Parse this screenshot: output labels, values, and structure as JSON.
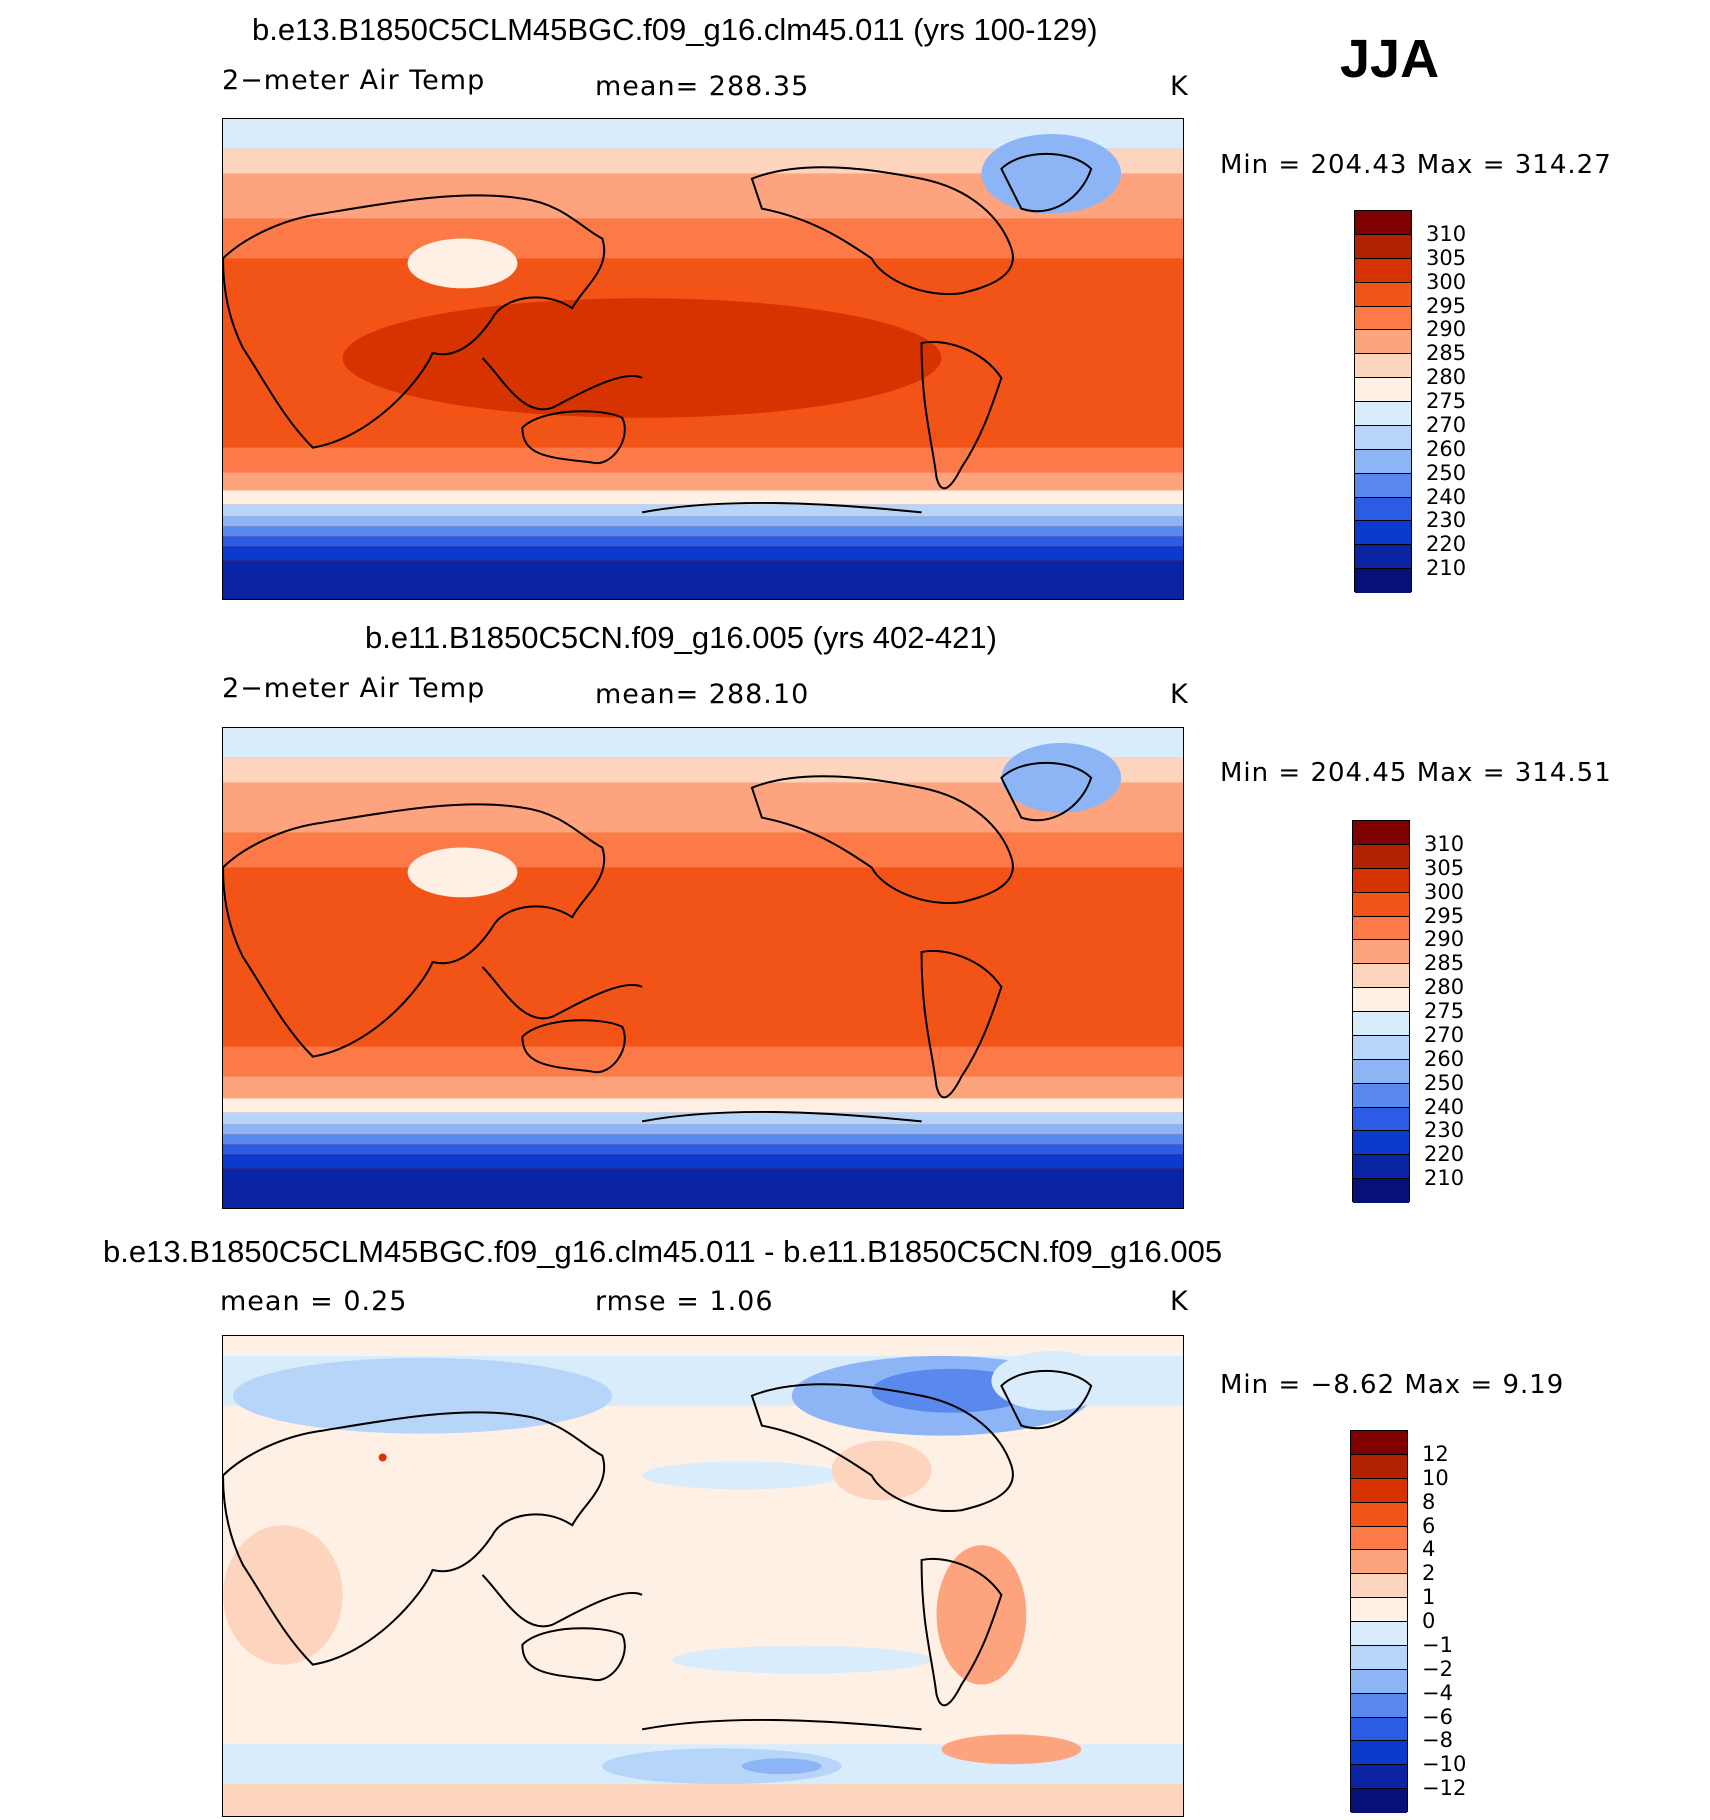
{
  "season": "JJA",
  "panels": [
    {
      "title": "b.e13.B1850C5CLM45BGC.f09_g16.clm45.011 (yrs 100-129)",
      "variable": "2−meter Air Temp",
      "stat1": "mean=  288.35",
      "stat2": "",
      "units": "K",
      "minmax": "Min  =  204.43  Max  =  314.27",
      "colorbar": {
        "labels": [
          "310",
          "305",
          "300",
          "295",
          "290",
          "285",
          "280",
          "275",
          "270",
          "260",
          "250",
          "240",
          "230",
          "220",
          "210"
        ],
        "colors": [
          "#7f0000",
          "#b22100",
          "#d63300",
          "#f25418",
          "#fc7a47",
          "#fda47e",
          "#fdd4bd",
          "#fff0e6",
          "#d9ecfb",
          "#b7d5f9",
          "#8db4f5",
          "#5a89ee",
          "#2c5ce6",
          "#0b3acc",
          "#0a24a4",
          "#061277"
        ]
      }
    },
    {
      "title": "b.e11.B1850C5CN.f09_g16.005 (yrs 402-421)",
      "variable": "2−meter Air Temp",
      "stat1": "mean=  288.10",
      "stat2": "",
      "units": "K",
      "minmax": "Min  =  204.45  Max  =  314.51",
      "colorbar": {
        "labels": [
          "310",
          "305",
          "300",
          "295",
          "290",
          "285",
          "280",
          "275",
          "270",
          "260",
          "250",
          "240",
          "230",
          "220",
          "210"
        ],
        "colors": [
          "#7f0000",
          "#b22100",
          "#d63300",
          "#f25418",
          "#fc7a47",
          "#fda47e",
          "#fdd4bd",
          "#fff0e6",
          "#d9ecfb",
          "#b7d5f9",
          "#8db4f5",
          "#5a89ee",
          "#2c5ce6",
          "#0b3acc",
          "#0a24a4",
          "#061277"
        ]
      }
    },
    {
      "title": "b.e13.B1850C5CLM45BGC.f09_g16.clm45.011 - b.e11.B1850C5CN.f09_g16.005",
      "variable": "",
      "stat1": "mean =     0.25",
      "stat2": "rmse =     1.06",
      "units": "K",
      "minmax": "Min  =    −8.62  Max  =     9.19",
      "colorbar": {
        "labels": [
          "12",
          "10",
          "8",
          "6",
          "4",
          "2",
          "1",
          "0",
          "−1",
          "−2",
          "−4",
          "−6",
          "−8",
          "−10",
          "−12"
        ],
        "colors": [
          "#7f0000",
          "#b22100",
          "#d63300",
          "#f25418",
          "#fc7a47",
          "#fda47e",
          "#fdd4bd",
          "#fff0e6",
          "#d9ecfb",
          "#b7d5f9",
          "#8db4f5",
          "#5a89ee",
          "#2c5ce6",
          "#0b3acc",
          "#0a24a4",
          "#061277"
        ]
      }
    }
  ]
}
